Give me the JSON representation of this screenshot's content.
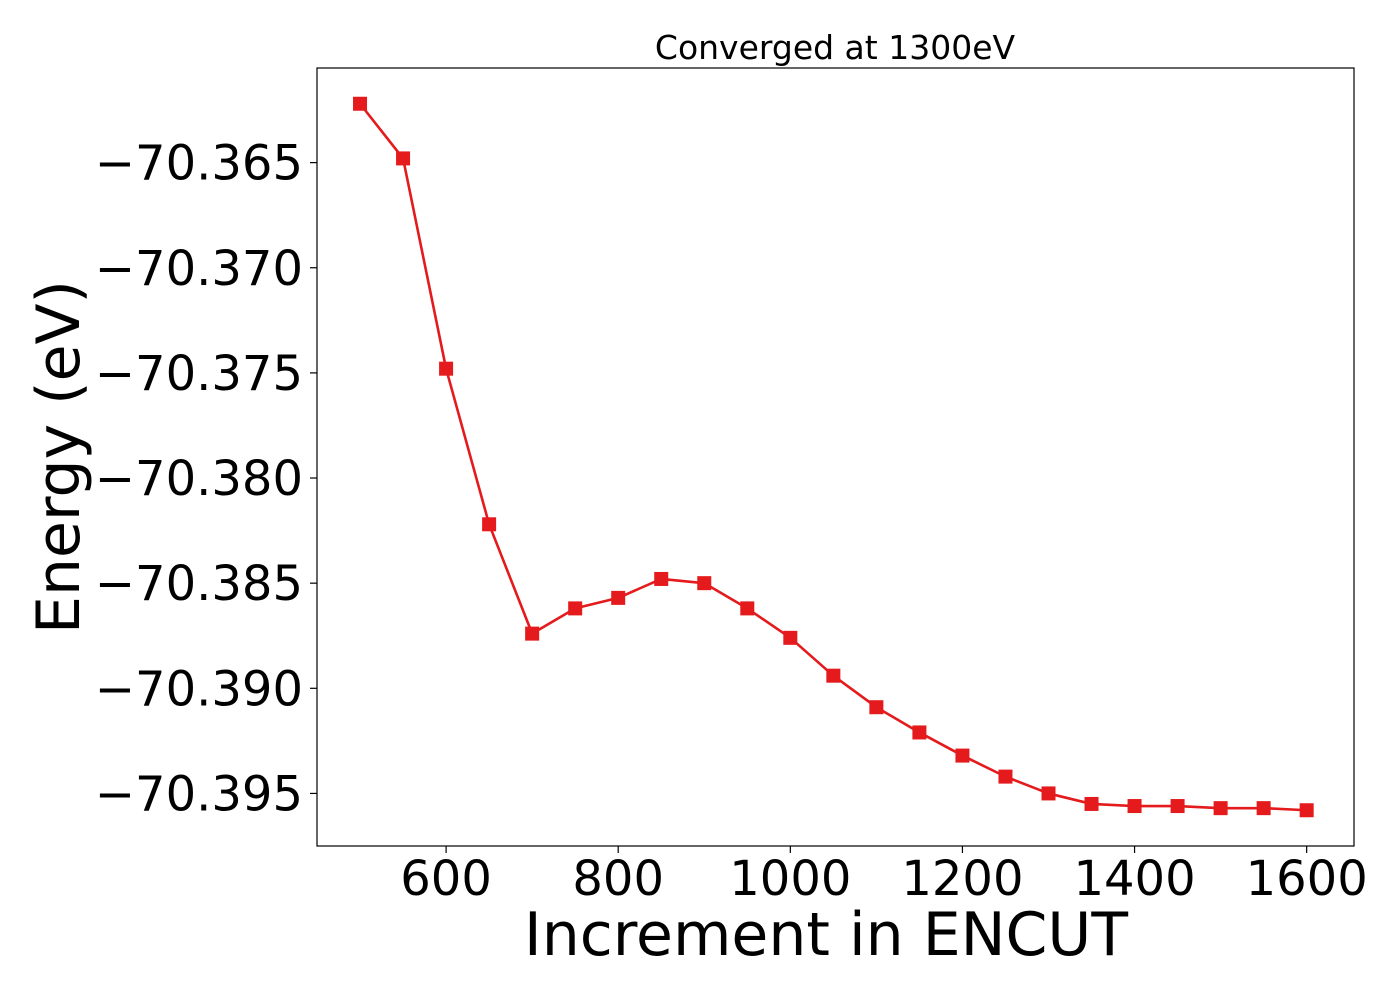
{
  "chart_data": {
    "type": "line",
    "title": "Converged at 1300eV",
    "xlabel": "Increment in ENCUT",
    "ylabel": "Energy (eV)",
    "xlim": [
      450,
      1655
    ],
    "ylim": [
      -70.3975,
      -70.3605
    ],
    "xticks": [
      600,
      800,
      1000,
      1200,
      1400,
      1600
    ],
    "yticks": [
      -70.365,
      -70.37,
      -70.375,
      -70.38,
      -70.385,
      -70.39,
      -70.395
    ],
    "ytick_labels": [
      "−70.365",
      "−70.370",
      "−70.375",
      "−70.380",
      "−70.385",
      "−70.390",
      "−70.395"
    ],
    "grid": false,
    "color": "#e41a1c",
    "marker": "square",
    "series": [
      {
        "x": [
          500,
          550,
          600,
          650,
          700,
          750,
          800,
          850,
          900,
          950,
          1000,
          1050,
          1100,
          1150,
          1200,
          1250,
          1300,
          1350,
          1400,
          1450,
          1500,
          1550,
          1600
        ],
        "values": [
          -70.3622,
          -70.3648,
          -70.3748,
          -70.3822,
          -70.3874,
          -70.3862,
          -70.3857,
          -70.3848,
          -70.385,
          -70.3862,
          -70.3876,
          -70.3894,
          -70.3909,
          -70.3921,
          -70.3932,
          -70.3942,
          -70.395,
          -70.3955,
          -70.3956,
          -70.3956,
          -70.3957,
          -70.3957,
          -70.3958
        ]
      }
    ]
  }
}
